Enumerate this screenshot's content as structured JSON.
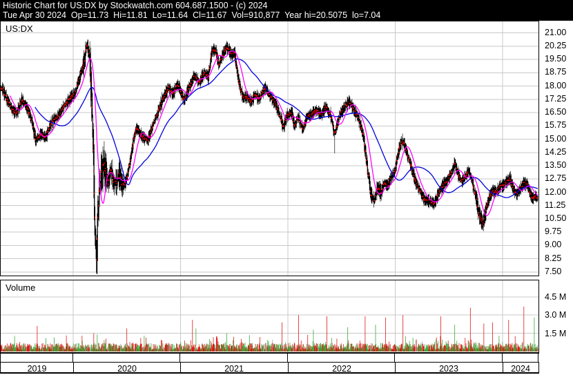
{
  "title_bar": {
    "line1": "Historic Chart for US:DX by Stockwatch.com 604.687.1500 - (c) 2024",
    "line2": "Tue Apr 30 2024  Op=11.73  Hi=11.81  Lo=11.64  Cl=11.67  Vol=910,877  Year hi=20.5075  lo=7.04"
  },
  "price_panel": {
    "symbol_label": "US:DX"
  },
  "volume_panel": {
    "label": "Volume"
  },
  "price_axis": {
    "ticks": [
      "21.00",
      "20.25",
      "19.50",
      "18.75",
      "18.00",
      "17.25",
      "16.50",
      "15.75",
      "15.00",
      "14.25",
      "13.50",
      "12.75",
      "12.00",
      "11.25",
      "10.50",
      "9.75",
      "9.00",
      "8.25",
      "7.50"
    ]
  },
  "volume_axis": {
    "ticks": [
      "4.5 M",
      "3.0 M",
      "1.5 M"
    ]
  },
  "x_axis": {
    "years": [
      "2019",
      "2020",
      "2021",
      "2022",
      "2023",
      "2024"
    ]
  },
  "colors": {
    "background": "#ffffff",
    "titlebar_bg": "#000000",
    "titlebar_text": "#ffffff",
    "gridline": "#c8c8c8",
    "ohlc_bar": "#000000",
    "close_tick": "#ff0000",
    "ma_fast": "#ff00ff",
    "ma_slow": "#0000dd",
    "volume_up": "#3aaa3a",
    "volume_down": "#e01818",
    "volume_neutral": "#aaaaaa"
  },
  "chart_data": {
    "type": "candlestick+volume",
    "symbol": "US:DX",
    "title": "Historic Chart for US:DX",
    "last_quote": {
      "date": "Tue Apr 30 2024",
      "open": 11.73,
      "high": 11.81,
      "low": 11.64,
      "close": 11.67,
      "volume": "910,877",
      "year_high": 20.5075,
      "year_low": 7.04
    },
    "x_domain_years": [
      2019.325,
      2024.328
    ],
    "price_axis_range": [
      7.2,
      21.65
    ],
    "price_gridline_step": 0.75,
    "volume_axis_max_m": 5.9,
    "volume_gridlines_m": [
      1.5,
      3.0,
      4.5
    ],
    "legend": [
      {
        "name": "daily OHLC bars",
        "color": "#000000"
      },
      {
        "name": "fast moving average",
        "color": "#ff00ff"
      },
      {
        "name": "slow moving average",
        "color": "#0000dd"
      }
    ],
    "moving_averages": {
      "fast_window_days": 22,
      "slow_window_days": 80
    },
    "price_path": [
      [
        2019.31,
        18.0
      ],
      [
        2019.342,
        17.8
      ],
      [
        2019.387,
        17.2
      ],
      [
        2019.439,
        16.6
      ],
      [
        2019.477,
        16.5
      ],
      [
        2019.522,
        17.25
      ],
      [
        2019.567,
        16.8
      ],
      [
        2019.612,
        16.1
      ],
      [
        2019.651,
        14.9
      ],
      [
        2019.696,
        15.3
      ],
      [
        2019.747,
        15.1
      ],
      [
        2019.792,
        15.9
      ],
      [
        2019.844,
        16.2
      ],
      [
        2019.889,
        16.6
      ],
      [
        2019.934,
        17.0
      ],
      [
        2019.972,
        17.3
      ],
      [
        2020.017,
        17.6
      ],
      [
        2020.049,
        18.3
      ],
      [
        2020.082,
        18.9
      ],
      [
        2020.107,
        19.5
      ],
      [
        2020.127,
        20.35
      ],
      [
        2020.152,
        19.7
      ],
      [
        2020.172,
        17.4
      ],
      [
        2020.191,
        13.5
      ],
      [
        2020.204,
        9.6
      ],
      [
        2020.217,
        8.0
      ],
      [
        2020.23,
        10.8
      ],
      [
        2020.243,
        12.2
      ],
      [
        2020.262,
        12.9
      ],
      [
        2020.281,
        13.6
      ],
      [
        2020.307,
        13.0
      ],
      [
        2020.326,
        12.5
      ],
      [
        2020.352,
        13.3
      ],
      [
        2020.378,
        12.4
      ],
      [
        2020.403,
        12.6
      ],
      [
        2020.429,
        13.0
      ],
      [
        2020.455,
        12.5
      ],
      [
        2020.48,
        12.4
      ],
      [
        2020.506,
        13.0
      ],
      [
        2020.532,
        13.8
      ],
      [
        2020.558,
        14.8
      ],
      [
        2020.583,
        15.6
      ],
      [
        2020.615,
        15.4
      ],
      [
        2020.648,
        15.1
      ],
      [
        2020.693,
        14.9
      ],
      [
        2020.738,
        15.7
      ],
      [
        2020.789,
        16.5
      ],
      [
        2020.841,
        17.4
      ],
      [
        2020.886,
        17.9
      ],
      [
        2020.931,
        17.6
      ],
      [
        2020.969,
        18.1
      ],
      [
        2021.001,
        17.7
      ],
      [
        2021.033,
        17.2
      ],
      [
        2021.078,
        17.9
      ],
      [
        2021.13,
        18.6
      ],
      [
        2021.175,
        18.2
      ],
      [
        2021.22,
        18.8
      ],
      [
        2021.258,
        18.5
      ],
      [
        2021.291,
        19.9
      ],
      [
        2021.323,
        20.1
      ],
      [
        2021.355,
        19.2
      ],
      [
        2021.387,
        19.7
      ],
      [
        2021.432,
        20.2
      ],
      [
        2021.471,
        19.8
      ],
      [
        2021.503,
        19.9
      ],
      [
        2021.541,
        18.3
      ],
      [
        2021.58,
        17.3
      ],
      [
        2021.625,
        17.4
      ],
      [
        2021.657,
        17.1
      ],
      [
        2021.689,
        17.5
      ],
      [
        2021.734,
        17.3
      ],
      [
        2021.786,
        17.9
      ],
      [
        2021.818,
        17.6
      ],
      [
        2021.85,
        17.3
      ],
      [
        2021.882,
        17.0
      ],
      [
        2021.914,
        16.5
      ],
      [
        2021.959,
        15.7
      ],
      [
        2021.991,
        16.3
      ],
      [
        2022.036,
        16.5
      ],
      [
        2022.062,
        15.7
      ],
      [
        2022.094,
        16.3
      ],
      [
        2022.139,
        15.5
      ],
      [
        2022.171,
        16.2
      ],
      [
        2022.216,
        16.4
      ],
      [
        2022.268,
        16.6
      ],
      [
        2022.313,
        16.4
      ],
      [
        2022.351,
        16.8
      ],
      [
        2022.396,
        16.4
      ],
      [
        2022.435,
        15.3
      ],
      [
        2022.48,
        16.3
      ],
      [
        2022.525,
        16.8
      ],
      [
        2022.57,
        17.1
      ],
      [
        2022.609,
        16.7
      ],
      [
        2022.654,
        16.2
      ],
      [
        2022.699,
        15.3
      ],
      [
        2022.737,
        13.6
      ],
      [
        2022.769,
        12.0
      ],
      [
        2022.802,
        11.5
      ],
      [
        2022.834,
        12.2
      ],
      [
        2022.866,
        12.0
      ],
      [
        2022.898,
        12.6
      ],
      [
        2022.93,
        12.4
      ],
      [
        2022.963,
        12.8
      ],
      [
        2022.995,
        13.2
      ],
      [
        2023.027,
        14.2
      ],
      [
        2023.059,
        14.9
      ],
      [
        2023.091,
        14.6
      ],
      [
        2023.124,
        13.9
      ],
      [
        2023.156,
        13.3
      ],
      [
        2023.188,
        12.6
      ],
      [
        2023.22,
        12.2
      ],
      [
        2023.252,
        11.8
      ],
      [
        2023.284,
        11.5
      ],
      [
        2023.329,
        11.5
      ],
      [
        2023.361,
        11.3
      ],
      [
        2023.406,
        12.0
      ],
      [
        2023.445,
        12.4
      ],
      [
        2023.49,
        12.7
      ],
      [
        2023.529,
        13.2
      ],
      [
        2023.554,
        13.6
      ],
      [
        2023.587,
        13.0
      ],
      [
        2023.619,
        12.6
      ],
      [
        2023.651,
        12.9
      ],
      [
        2023.683,
        13.3
      ],
      [
        2023.715,
        12.6
      ],
      [
        2023.747,
        11.8
      ],
      [
        2023.78,
        10.8
      ],
      [
        2023.812,
        10.2
      ],
      [
        2023.844,
        11.0
      ],
      [
        2023.876,
        11.7
      ],
      [
        2023.908,
        12.1
      ],
      [
        2023.94,
        12.0
      ],
      [
        2023.973,
        12.3
      ],
      [
        2024.005,
        12.4
      ],
      [
        2024.037,
        12.6
      ],
      [
        2024.069,
        12.8
      ],
      [
        2024.101,
        12.2
      ],
      [
        2024.133,
        11.9
      ],
      [
        2024.165,
        12.2
      ],
      [
        2024.198,
        12.5
      ],
      [
        2024.23,
        12.4
      ],
      [
        2024.262,
        11.9
      ],
      [
        2024.281,
        11.6
      ],
      [
        2024.3,
        11.8
      ],
      [
        2024.313,
        11.67
      ]
    ],
    "spike_highs": [
      [
        2020.127,
        20.5
      ],
      [
        2021.432,
        20.55
      ]
    ],
    "spike_lows": [
      [
        2020.217,
        7.45
      ],
      [
        2022.435,
        14.2
      ],
      [
        2023.812,
        9.87
      ]
    ],
    "volume_spikes_m": [
      [
        2019.664,
        2.1,
        "r"
      ],
      [
        2019.747,
        1.1,
        "g"
      ],
      [
        2020.082,
        1.3,
        "r"
      ],
      [
        2020.191,
        1.5,
        "r"
      ],
      [
        2020.223,
        1.4,
        "g"
      ],
      [
        2020.5,
        1.9,
        "r"
      ],
      [
        2020.66,
        1.3,
        "g"
      ],
      [
        2021.111,
        2.6,
        "r"
      ],
      [
        2021.143,
        1.9,
        "g"
      ],
      [
        2021.432,
        1.5,
        "g"
      ],
      [
        2021.946,
        2.4,
        "r"
      ],
      [
        2022.1,
        3.0,
        "r"
      ],
      [
        2022.236,
        1.8,
        "g"
      ],
      [
        2022.364,
        2.9,
        "r"
      ],
      [
        2022.557,
        2.0,
        "g"
      ],
      [
        2022.718,
        2.9,
        "r"
      ],
      [
        2022.815,
        2.2,
        "g"
      ],
      [
        2022.911,
        2.8,
        "r"
      ],
      [
        2023.072,
        3.0,
        "r"
      ],
      [
        2023.19,
        0.95,
        "gy"
      ],
      [
        2023.25,
        0.85,
        "gy"
      ],
      [
        2023.426,
        2.9,
        "r"
      ],
      [
        2023.554,
        2.2,
        "g"
      ],
      [
        2023.702,
        3.6,
        "r"
      ],
      [
        2023.824,
        2.3,
        "r"
      ],
      [
        2023.908,
        2.4,
        "r"
      ],
      [
        2024.056,
        2.6,
        "r"
      ],
      [
        2024.198,
        3.7,
        "r"
      ],
      [
        2024.294,
        2.8,
        "g"
      ]
    ]
  }
}
